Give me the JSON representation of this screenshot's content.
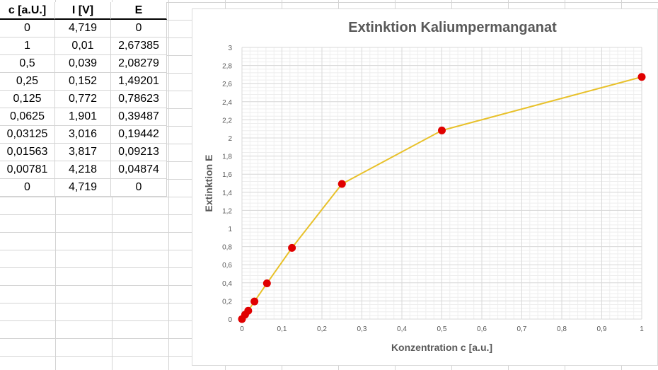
{
  "table": {
    "headers": [
      "c [a.U.]",
      "I [V]",
      "E"
    ],
    "rows": [
      [
        "0",
        "4,719",
        "0"
      ],
      [
        "1",
        "0,01",
        "2,67385"
      ],
      [
        "0,5",
        "0,039",
        "2,08279"
      ],
      [
        "0,25",
        "0,152",
        "1,49201"
      ],
      [
        "0,125",
        "0,772",
        "0,78623"
      ],
      [
        "0,0625",
        "1,901",
        "0,39487"
      ],
      [
        "0,03125",
        "3,016",
        "0,19442"
      ],
      [
        "0,01563",
        "3,817",
        "0,09213"
      ],
      [
        "0,00781",
        "4,218",
        "0,04874"
      ],
      [
        "0",
        "4,719",
        "0"
      ]
    ]
  },
  "colors": {
    "line": "#e8c12a",
    "marker": "#e00000",
    "grid_major": "#d9d9d9",
    "grid_minor": "#eeeeee",
    "title": "#595959"
  },
  "chart_data": {
    "type": "scatter",
    "title": "Extinktion Kaliumpermanganat",
    "xlabel": "Konzentration c [a.u.]",
    "ylabel": "Extinktion E",
    "xlim": [
      0,
      1
    ],
    "ylim": [
      0,
      3
    ],
    "xticks": [
      "0",
      "0,1",
      "0,2",
      "0,3",
      "0,4",
      "0,5",
      "0,6",
      "0,7",
      "0,8",
      "0,9",
      "1"
    ],
    "yticks": [
      "0",
      "0,2",
      "0,4",
      "0,6",
      "0,8",
      "1",
      "1,2",
      "1,4",
      "1,6",
      "1,8",
      "2",
      "2,2",
      "2,4",
      "2,6",
      "2,8",
      "3"
    ],
    "grid": true,
    "legend": "none",
    "x": [
      0,
      0.00781,
      0.01563,
      0.03125,
      0.0625,
      0.125,
      0.25,
      0.5,
      1
    ],
    "y": [
      0,
      0.04874,
      0.09213,
      0.19442,
      0.39487,
      0.78623,
      1.49201,
      2.08279,
      2.67385
    ]
  }
}
